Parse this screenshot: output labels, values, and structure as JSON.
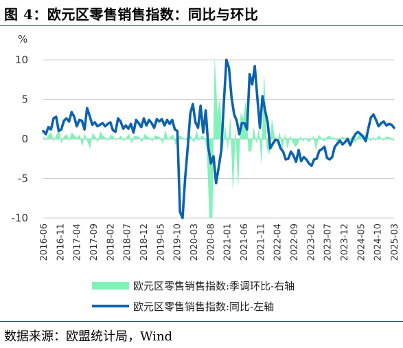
{
  "header": {
    "title": "图 4：欧元区零售销售指数：同比与环比"
  },
  "footer": {
    "source": "数据来源：欧盟统计局，Wind"
  },
  "chart_data": {
    "type": "line",
    "ylabel": "%",
    "ylim": [
      -10,
      10
    ],
    "yticks": [
      10,
      5,
      0,
      -5,
      -10
    ],
    "xticks": [
      "2016-06",
      "2016-11",
      "2017-04",
      "2017-09",
      "2018-02",
      "2018-07",
      "2018-12",
      "2019-05",
      "2019-10",
      "2020-03",
      "2020-08",
      "2021-01",
      "2021-06",
      "2021-11",
      "2022-04",
      "2022-09",
      "2023-02",
      "2023-07",
      "2023-12",
      "2024-05",
      "2024-10",
      "2025-03"
    ],
    "x_start": "2016-06",
    "x_end": "2025-03",
    "series": [
      {
        "name": "欧元区零售销售指数:季调环比-右轴",
        "kind": "area",
        "color": "#7ff2b8",
        "values": [
          0.3,
          -0.2,
          0.5,
          0.8,
          -0.3,
          0.4,
          1.1,
          -0.5,
          0.3,
          0.6,
          -0.2,
          0.8,
          0.4,
          0.1,
          0.5,
          -0.9,
          0.6,
          -0.3,
          -1.2,
          0.7,
          0.3,
          -0.4,
          0.9,
          0.4,
          0.1,
          -0.2,
          0.5,
          0.3,
          -0.1,
          0.1,
          0.4,
          -0.3,
          0.2,
          0.6,
          -0.5,
          0.4,
          0.3,
          0.2,
          -0.4,
          0.6,
          0.3,
          0.1,
          -0.3,
          0.4,
          0.3,
          0.2,
          -0.6,
          1.1,
          -0.2,
          0.3,
          0.5,
          -0.8,
          0.4,
          0.3,
          0.1,
          -0.2,
          0.4,
          0.3,
          -0.5,
          1.0,
          -0.2,
          0.4,
          0.2,
          -1.2,
          -11.5,
          -10.0,
          20.0,
          3.0,
          5.0,
          -1.5,
          1.6,
          -1.2,
          2.6,
          -6.3,
          1.2,
          -5.9,
          3.2,
          2.6,
          4.8,
          -1.6,
          -1.5,
          1.4,
          -0.5,
          1.2,
          -3.0,
          8.0,
          -1.1,
          -1.9,
          2.4,
          0.2,
          -0.4,
          0.8,
          -1.3,
          0.6,
          -1.2,
          0.4,
          -0.4,
          -1.0,
          -0.6,
          0.3,
          -0.3,
          0.2,
          -0.4,
          -0.1,
          0.3,
          -1.4,
          0.5,
          0.1,
          -0.3,
          0.2,
          0.4,
          0.1,
          0.2,
          -0.2,
          -0.6,
          0.3,
          0.1,
          0.2,
          -0.2,
          0.4,
          -0.5,
          0.3,
          0.7,
          0.1,
          0.5,
          0.3,
          -0.3,
          0.2,
          -0.2,
          0.4,
          0.1,
          -0.2,
          0.3,
          0.2,
          0.1,
          -0.3
        ]
      },
      {
        "name": "欧元区零售销售指数:同比-左轴",
        "kind": "line",
        "color": "#0d62ad",
        "values": [
          1.0,
          0.6,
          1.5,
          1.2,
          2.6,
          2.8,
          1.0,
          1.2,
          2.3,
          2.6,
          2.2,
          3.4,
          2.8,
          1.6,
          2.4,
          2.3,
          1.2,
          3.9,
          2.9,
          1.8,
          2.1,
          1.6,
          1.8,
          2.0,
          1.6,
          1.9,
          2.1,
          1.1,
          0.9,
          2.6,
          2.2,
          1.3,
          1.7,
          1.3,
          1.9,
          0.8,
          2.4,
          2.0,
          1.5,
          2.6,
          1.7,
          2.4,
          2.0,
          1.4,
          2.5,
          2.2,
          2.5,
          1.7,
          2.4,
          1.9,
          2.4,
          1.2,
          1.0,
          -9.2,
          -19.6,
          -5.0,
          -1.1,
          3.2,
          4.4,
          2.1,
          1.4,
          4.2,
          0.8,
          3.6,
          -1.1,
          -3.1,
          -2.2,
          -5.6,
          -3.6,
          -1.5,
          4.5,
          25.0,
          9.0,
          5.2,
          3.1,
          2.3,
          0.6,
          2.0,
          2.0,
          1.2,
          8.2,
          6.9,
          9.2,
          5.2,
          1.4,
          5.4,
          3.6,
          2.1,
          -1.2,
          -0.6,
          -0.1,
          -0.2,
          -1.2,
          -1.6,
          -2.6,
          -2.5,
          -1.6,
          -2.1,
          -2.9,
          -1.4,
          -2.8,
          -2.3,
          -2.6,
          -3.1,
          -3.4,
          -2.6,
          -2.5,
          -1.5,
          -1.3,
          -1.0,
          -2.4,
          -2.6,
          -2.3,
          -1.0,
          -0.6,
          -0.2,
          -0.7,
          -0.4,
          0.0,
          -0.8,
          0.0,
          0.6,
          0.9,
          0.6,
          0.3,
          -0.3,
          1.3,
          2.7,
          3.1,
          2.4,
          1.6,
          2.0,
          2.2,
          1.7,
          1.9,
          1.8,
          1.4
        ]
      }
    ],
    "legend_position": "bottom"
  }
}
